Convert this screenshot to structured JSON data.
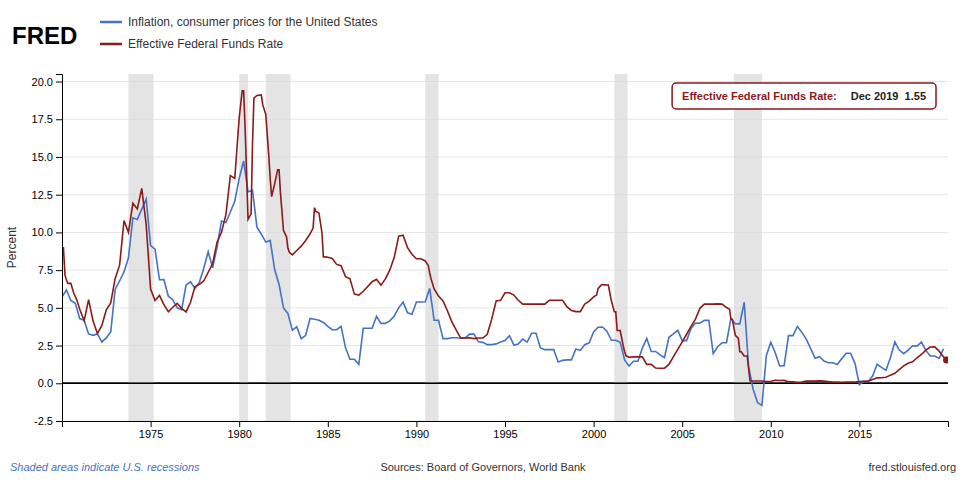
{
  "chart_data": {
    "type": "line",
    "title": "FRED",
    "ylabel": "Percent",
    "xlim": [
      1970.0,
      2020.0
    ],
    "ylim": [
      -2.5,
      20.5
    ],
    "xticks": [
      1975,
      1980,
      1985,
      1990,
      1995,
      2000,
      2005,
      2010,
      2015
    ],
    "yticks": [
      -2.5,
      {
        "value": 0.0,
        "label": "0.0"
      },
      2.5,
      {
        "value": 5.0,
        "label": "5.0"
      },
      7.5,
      {
        "value": 10.0,
        "label": "10.0"
      },
      12.5,
      {
        "value": 15.0,
        "label": "15.0"
      },
      17.5,
      {
        "value": 20.0,
        "label": "20.0"
      }
    ],
    "grid": true,
    "legend": "top",
    "recessions": [
      [
        1973.75,
        1975.17
      ],
      [
        1980.0,
        1980.5
      ],
      [
        1981.5,
        1982.9
      ],
      [
        1990.5,
        1991.25
      ],
      [
        2001.17,
        2001.92
      ],
      [
        2007.92,
        2009.5
      ]
    ],
    "annotations": [
      "Effective Federal Funds Rate:",
      "Dec 2019  1.55",
      "Shaded areas indicate U.S. recessions",
      "Sources: Board of Governors, World Bank",
      "fred.stlouisfed.org"
    ],
    "series": [
      {
        "name": "Inflation, consumer prices for the United States",
        "color": "#4472c4",
        "x": [
          1970.0,
          1970.25,
          1970.5,
          1970.75,
          1971.0,
          1971.25,
          1971.5,
          1971.75,
          1972.0,
          1972.25,
          1972.5,
          1972.75,
          1973.0,
          1973.25,
          1973.5,
          1973.75,
          1974.0,
          1974.25,
          1974.5,
          1974.75,
          1975.0,
          1975.25,
          1975.5,
          1975.75,
          1976.0,
          1976.25,
          1976.5,
          1976.75,
          1977.0,
          1977.25,
          1977.5,
          1977.75,
          1978.0,
          1978.25,
          1978.5,
          1978.75,
          1979.0,
          1979.25,
          1979.5,
          1979.75,
          1980.0,
          1980.25,
          1980.5,
          1980.75,
          1981.0,
          1981.25,
          1981.5,
          1981.75,
          1982.0,
          1982.25,
          1982.5,
          1982.75,
          1983.0,
          1983.25,
          1983.5,
          1983.75,
          1984.0,
          1984.25,
          1984.5,
          1984.75,
          1985.0,
          1985.25,
          1985.5,
          1985.75,
          1986.0,
          1986.25,
          1986.5,
          1986.75,
          1987.0,
          1987.25,
          1987.5,
          1987.75,
          1988.0,
          1988.25,
          1988.5,
          1988.75,
          1989.0,
          1989.25,
          1989.5,
          1989.75,
          1990.0,
          1990.25,
          1990.5,
          1990.75,
          1991.0,
          1991.25,
          1991.5,
          1991.75,
          1992.0,
          1992.25,
          1992.5,
          1992.75,
          1993.0,
          1993.25,
          1993.5,
          1993.75,
          1994.0,
          1994.25,
          1994.5,
          1994.75,
          1995.0,
          1995.25,
          1995.5,
          1995.75,
          1996.0,
          1996.25,
          1996.5,
          1996.75,
          1997.0,
          1997.25,
          1997.5,
          1997.75,
          1998.0,
          1998.25,
          1998.5,
          1998.75,
          1999.0,
          1999.25,
          1999.5,
          1999.75,
          2000.0,
          2000.25,
          2000.5,
          2000.75,
          2001.0,
          2001.25,
          2001.5,
          2001.75,
          2002.0,
          2002.25,
          2002.5,
          2002.75,
          2003.0,
          2003.25,
          2003.5,
          2003.75,
          2004.0,
          2004.25,
          2004.5,
          2004.75,
          2005.0,
          2005.25,
          2005.5,
          2005.75,
          2006.0,
          2006.25,
          2006.5,
          2006.75,
          2007.0,
          2007.25,
          2007.5,
          2007.75,
          2008.0,
          2008.25,
          2008.5,
          2008.75,
          2009.0,
          2009.25,
          2009.5,
          2009.75,
          2010.0,
          2010.25,
          2010.5,
          2010.75,
          2011.0,
          2011.25,
          2011.5,
          2011.75,
          2012.0,
          2012.25,
          2012.5,
          2012.75,
          2013.0,
          2013.25,
          2013.5,
          2013.75,
          2014.0,
          2014.25,
          2014.5,
          2014.75,
          2015.0,
          2015.25,
          2015.5,
          2015.75,
          2016.0,
          2016.25,
          2016.5,
          2016.75,
          2017.0,
          2017.25,
          2017.5,
          2017.75,
          2018.0,
          2018.25,
          2018.5,
          2018.75,
          2019.0,
          2019.25,
          2019.5,
          2019.75
        ],
        "values": [
          5.72,
          6.18,
          5.49,
          5.3,
          4.29,
          4.17,
          3.27,
          3.18,
          3.27,
          2.74,
          3.01,
          3.41,
          6.22,
          6.78,
          7.38,
          8.32,
          10.97,
          10.86,
          11.54,
          12.2,
          9.13,
          8.89,
          6.86,
          6.87,
          5.77,
          5.54,
          5.0,
          4.87,
          6.5,
          6.73,
          6.29,
          6.69,
          7.63,
          8.72,
          7.65,
          9.02,
          10.75,
          10.65,
          11.35,
          12.07,
          13.58,
          14.73,
          12.68,
          12.8,
          10.35,
          9.88,
          9.36,
          9.47,
          7.54,
          6.55,
          5.0,
          4.62,
          3.52,
          3.74,
          2.96,
          3.18,
          4.3,
          4.24,
          4.18,
          4.03,
          3.77,
          3.55,
          3.55,
          3.77,
          2.35,
          1.59,
          1.59,
          1.26,
          3.65,
          3.65,
          3.65,
          4.44,
          3.97,
          3.97,
          4.14,
          4.46,
          5.0,
          5.38,
          4.67,
          4.58,
          5.39,
          5.39,
          5.4,
          6.29,
          4.18,
          4.18,
          2.96,
          2.96,
          3.02,
          3.02,
          2.99,
          2.99,
          3.26,
          3.26,
          2.75,
          2.71,
          2.56,
          2.56,
          2.61,
          2.74,
          2.83,
          3.15,
          2.54,
          2.61,
          2.93,
          2.73,
          3.32,
          3.32,
          2.34,
          2.23,
          2.23,
          2.23,
          1.41,
          1.52,
          1.55,
          1.55,
          2.28,
          2.18,
          2.56,
          2.68,
          3.4,
          3.71,
          3.73,
          3.45,
          2.85,
          2.85,
          2.72,
          1.55,
          1.14,
          1.46,
          1.46,
          2.33,
          2.97,
          2.11,
          2.11,
          1.88,
          1.69,
          3.05,
          3.27,
          3.51,
          2.83,
          2.83,
          3.64,
          3.99,
          3.98,
          4.17,
          4.18,
          1.97,
          2.42,
          2.69,
          2.69,
          4.31,
          3.94,
          3.94,
          5.37,
          1.07,
          -0.38,
          -1.28,
          -1.46,
          1.84,
          2.72,
          2.02,
          1.15,
          1.17,
          3.16,
          3.16,
          3.77,
          3.39,
          2.93,
          2.3,
          1.66,
          1.76,
          1.47,
          1.36,
          1.36,
          1.24,
          1.62,
          1.99,
          1.99,
          1.32,
          -0.09,
          0.12,
          0.12,
          0.5,
          1.26,
          1.06,
          0.86,
          1.69,
          2.74,
          2.2,
          1.96,
          2.2,
          2.49,
          2.46,
          2.73,
          2.18,
          1.81,
          1.81,
          1.65,
          2.29
        ]
      },
      {
        "name": "Effective Federal Funds Rate",
        "color": "#8b1a1a",
        "x": [
          1970.0,
          1970.08,
          1970.17,
          1970.25,
          1970.33,
          1970.5,
          1970.67,
          1970.83,
          1971.0,
          1971.25,
          1971.5,
          1971.75,
          1972.0,
          1972.25,
          1972.5,
          1972.75,
          1973.0,
          1973.25,
          1973.5,
          1973.75,
          1974.0,
          1974.25,
          1974.5,
          1974.75,
          1975.0,
          1975.25,
          1975.5,
          1975.75,
          1976.0,
          1976.25,
          1976.5,
          1976.75,
          1977.0,
          1977.25,
          1977.5,
          1977.75,
          1978.0,
          1978.25,
          1978.5,
          1978.75,
          1979.0,
          1979.25,
          1979.5,
          1979.75,
          1980.0,
          1980.17,
          1980.25,
          1980.33,
          1980.5,
          1980.67,
          1980.75,
          1980.83,
          1981.0,
          1981.17,
          1981.25,
          1981.33,
          1981.5,
          1981.67,
          1981.75,
          1981.83,
          1982.0,
          1982.17,
          1982.25,
          1982.33,
          1982.5,
          1982.67,
          1982.75,
          1982.83,
          1983.0,
          1983.25,
          1983.5,
          1983.75,
          1984.0,
          1984.17,
          1984.25,
          1984.33,
          1984.5,
          1984.67,
          1984.75,
          1984.83,
          1985.0,
          1985.25,
          1985.5,
          1985.75,
          1986.0,
          1986.25,
          1986.5,
          1986.75,
          1987.0,
          1987.25,
          1987.5,
          1987.75,
          1988.0,
          1988.25,
          1988.5,
          1988.75,
          1989.0,
          1989.25,
          1989.5,
          1989.75,
          1990.0,
          1990.17,
          1990.25,
          1990.5,
          1990.67,
          1990.75,
          1990.83,
          1991.0,
          1991.25,
          1991.5,
          1991.75,
          1992.0,
          1992.25,
          1992.5,
          1992.75,
          1993.0,
          1993.25,
          1993.5,
          1993.75,
          1994.0,
          1994.25,
          1994.5,
          1994.75,
          1995.0,
          1995.25,
          1995.5,
          1995.75,
          1996.0,
          1996.25,
          1996.5,
          1996.75,
          1997.0,
          1997.25,
          1997.5,
          1997.75,
          1998.0,
          1998.25,
          1998.5,
          1998.75,
          1999.0,
          1999.25,
          1999.5,
          1999.75,
          2000.0,
          2000.17,
          2000.25,
          2000.42,
          2000.5,
          2000.67,
          2000.75,
          2000.83,
          2001.0,
          2001.17,
          2001.25,
          2001.33,
          2001.5,
          2001.67,
          2001.75,
          2001.83,
          2002.0,
          2002.25,
          2002.5,
          2002.75,
          2003.0,
          2003.25,
          2003.5,
          2003.75,
          2004.0,
          2004.25,
          2004.5,
          2004.75,
          2005.0,
          2005.25,
          2005.5,
          2005.75,
          2006.0,
          2006.25,
          2006.5,
          2006.75,
          2007.0,
          2007.25,
          2007.5,
          2007.67,
          2007.75,
          2007.83,
          2008.0,
          2008.17,
          2008.25,
          2008.33,
          2008.5,
          2008.67,
          2008.75,
          2008.83,
          2009.0,
          2009.25,
          2009.5,
          2009.75,
          2010.0,
          2010.25,
          2010.5,
          2010.75,
          2011.0,
          2011.25,
          2011.5,
          2011.75,
          2012.0,
          2012.25,
          2012.5,
          2012.75,
          2013.0,
          2013.25,
          2013.5,
          2013.75,
          2014.0,
          2014.25,
          2014.5,
          2014.75,
          2015.0,
          2015.25,
          2015.5,
          2015.75,
          2016.0,
          2016.25,
          2016.5,
          2016.75,
          2017.0,
          2017.25,
          2017.5,
          2017.75,
          2018.0,
          2018.25,
          2018.5,
          2018.75,
          2019.0,
          2019.25,
          2019.5,
          2019.75,
          2019.917
        ],
        "values": [
          8.98,
          8.98,
          7.17,
          6.85,
          6.62,
          6.62,
          5.95,
          5.55,
          4.91,
          4.15,
          5.55,
          4.14,
          3.29,
          3.83,
          4.87,
          5.33,
          6.95,
          7.83,
          10.78,
          10.01,
          11.93,
          11.56,
          12.92,
          10.53,
          6.24,
          5.49,
          5.82,
          5.21,
          4.74,
          5.04,
          5.3,
          4.97,
          4.73,
          5.35,
          6.39,
          6.56,
          6.78,
          7.36,
          7.94,
          9.35,
          10.01,
          11.18,
          13.77,
          13.58,
          17.61,
          19.39,
          19.39,
          17.05,
          10.87,
          11.23,
          15.85,
          18.9,
          19.08,
          19.1,
          19.1,
          18.45,
          17.82,
          15.08,
          13.54,
          12.37,
          13.22,
          14.15,
          14.15,
          12.59,
          10.12,
          9.71,
          8.95,
          8.68,
          8.51,
          8.8,
          9.09,
          9.47,
          9.91,
          10.29,
          11.64,
          11.39,
          11.29,
          9.98,
          8.38,
          8.38,
          8.35,
          8.27,
          7.88,
          7.79,
          7.07,
          6.92,
          5.91,
          5.85,
          6.1,
          6.42,
          6.73,
          6.9,
          6.5,
          6.92,
          7.51,
          8.35,
          9.75,
          9.81,
          8.99,
          8.55,
          8.25,
          8.25,
          8.25,
          8.11,
          7.81,
          7.31,
          6.91,
          6.25,
          5.78,
          5.46,
          4.81,
          4.07,
          3.52,
          3.0,
          3.0,
          3.02,
          2.96,
          3.0,
          3.0,
          3.25,
          4.25,
          5.45,
          5.5,
          6.0,
          6.0,
          5.85,
          5.5,
          5.25,
          5.25,
          5.25,
          5.25,
          5.25,
          5.25,
          5.5,
          5.5,
          5.5,
          5.5,
          5.06,
          4.83,
          4.75,
          4.75,
          5.25,
          5.45,
          5.73,
          5.85,
          6.27,
          6.5,
          6.54,
          6.52,
          6.51,
          6.51,
          5.49,
          4.74,
          4.74,
          3.5,
          3.5,
          2.5,
          2.09,
          1.82,
          1.73,
          1.75,
          1.75,
          1.75,
          1.25,
          1.25,
          1.01,
          1.0,
          1.0,
          1.25,
          1.75,
          2.25,
          2.75,
          3.25,
          3.77,
          4.25,
          4.97,
          5.25,
          5.25,
          5.25,
          5.26,
          5.25,
          5.02,
          4.91,
          4.24,
          4.24,
          3.18,
          2.98,
          2.09,
          2.09,
          1.81,
          1.81,
          0.97,
          0.16,
          0.15,
          0.15,
          0.15,
          0.12,
          0.13,
          0.2,
          0.18,
          0.19,
          0.1,
          0.1,
          0.07,
          0.08,
          0.14,
          0.14,
          0.14,
          0.16,
          0.14,
          0.11,
          0.09,
          0.09,
          0.07,
          0.09,
          0.09,
          0.09,
          0.11,
          0.13,
          0.14,
          0.25,
          0.36,
          0.37,
          0.4,
          0.54,
          0.66,
          0.91,
          1.16,
          1.33,
          1.42,
          1.69,
          1.91,
          2.2,
          2.4,
          2.41,
          2.13,
          1.75,
          1.55
        ]
      }
    ]
  }
}
